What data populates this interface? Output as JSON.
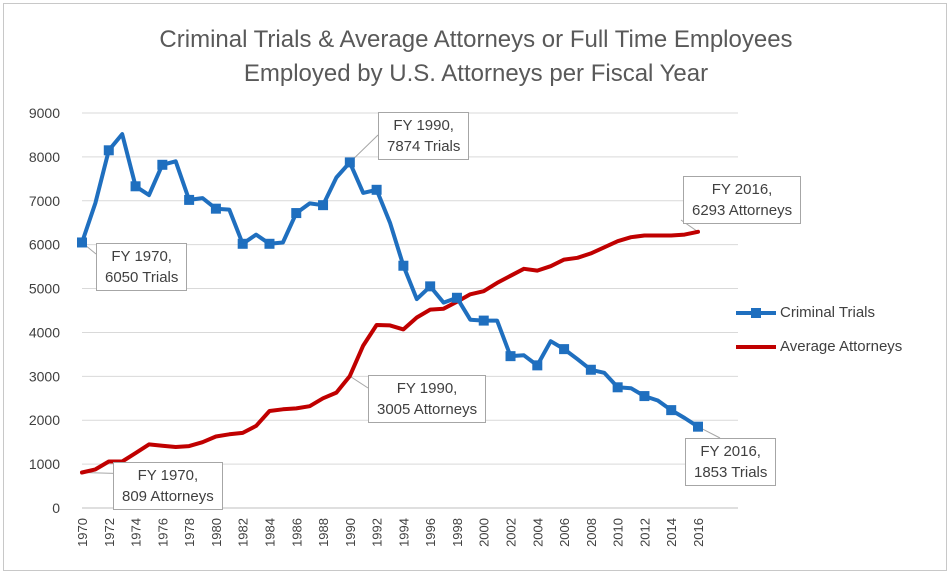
{
  "chart_data": {
    "type": "line",
    "title_line1": "Criminal Trials & Average Attorneys or Full Time Employees",
    "title_line2": "Employed by U.S. Attorneys per Fiscal Year",
    "ylim": [
      0,
      9000
    ],
    "yticks": [
      0,
      1000,
      2000,
      3000,
      4000,
      5000,
      6000,
      7000,
      8000,
      9000
    ],
    "x": [
      1970,
      1971,
      1972,
      1973,
      1974,
      1975,
      1976,
      1977,
      1978,
      1979,
      1980,
      1981,
      1982,
      1983,
      1984,
      1985,
      1986,
      1987,
      1988,
      1989,
      1990,
      1991,
      1992,
      1993,
      1994,
      1995,
      1996,
      1997,
      1998,
      1999,
      2000,
      2001,
      2002,
      2003,
      2004,
      2005,
      2006,
      2007,
      2008,
      2009,
      2010,
      2011,
      2012,
      2013,
      2014,
      2015,
      2016
    ],
    "xticks": [
      "1970",
      "1972",
      "1974",
      "1976",
      "1978",
      "1980",
      "1982",
      "1984",
      "1986",
      "1988",
      "1990",
      "1992",
      "1994",
      "1996",
      "1998",
      "2000",
      "2002",
      "2004",
      "2006",
      "2008",
      "2010",
      "2012",
      "2014",
      "2016"
    ],
    "grid": "horizontal",
    "legend_position": "right",
    "series": [
      {
        "name": "Criminal Trials",
        "color": "#1F6FBF",
        "marker": "square",
        "values": [
          6050,
          6950,
          8150,
          8520,
          7330,
          7130,
          7820,
          7900,
          7020,
          7060,
          6820,
          6800,
          6020,
          6230,
          6020,
          6050,
          6720,
          6940,
          6900,
          7530,
          7874,
          7180,
          7250,
          6500,
          5520,
          4760,
          5050,
          4680,
          4790,
          4290,
          4270,
          4270,
          3460,
          3480,
          3250,
          3800,
          3620,
          3390,
          3150,
          3080,
          2750,
          2730,
          2550,
          2450,
          2230,
          2050,
          1853
        ]
      },
      {
        "name": "Average Attorneys",
        "color": "#C00000",
        "marker": "none",
        "values": [
          809,
          880,
          1060,
          1060,
          1250,
          1450,
          1420,
          1390,
          1410,
          1500,
          1630,
          1680,
          1710,
          1870,
          2210,
          2250,
          2270,
          2320,
          2500,
          2630,
          3005,
          3700,
          4170,
          4160,
          4070,
          4340,
          4520,
          4540,
          4700,
          4870,
          4940,
          5130,
          5290,
          5450,
          5410,
          5510,
          5660,
          5700,
          5800,
          5940,
          6080,
          6170,
          6210,
          6210,
          6210,
          6230,
          6293
        ]
      }
    ],
    "annotations": [
      {
        "line1": "FY 1970,",
        "line2": "6050 Trials"
      },
      {
        "line1": "FY 1990,",
        "line2": "7874 Trials"
      },
      {
        "line1": "FY 2016,",
        "line2": "6293 Attorneys"
      },
      {
        "line1": "FY 1990,",
        "line2": "3005 Attorneys"
      },
      {
        "line1": "FY 1970,",
        "line2": "809 Attorneys"
      },
      {
        "line1": "FY 2016,",
        "line2": "1853 Trials"
      }
    ]
  }
}
